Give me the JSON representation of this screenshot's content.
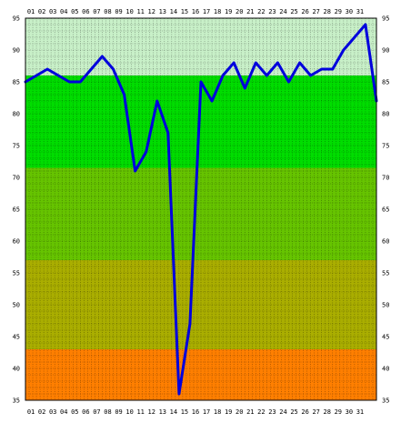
{
  "chart_data": {
    "type": "line",
    "title": "",
    "xlabel": "",
    "ylabel": "",
    "x_ticks": [
      "01",
      "02",
      "03",
      "04",
      "05",
      "06",
      "07",
      "08",
      "09",
      "10",
      "11",
      "12",
      "13",
      "14",
      "15",
      "16",
      "17",
      "18",
      "19",
      "20",
      "21",
      "22",
      "23",
      "24",
      "25",
      "26",
      "27",
      "28",
      "29",
      "30",
      "31"
    ],
    "y_ticks": [
      95,
      90,
      85,
      80,
      75,
      70,
      65,
      60,
      55,
      50,
      45,
      40,
      35
    ],
    "ylim": [
      35,
      95
    ],
    "x_range": [
      0.5,
      32.5
    ],
    "grid": true,
    "bands": [
      {
        "from": 86,
        "to": 95,
        "color": "#c8f0c8"
      },
      {
        "from": 71.5,
        "to": 86,
        "color": "#00dd00"
      },
      {
        "from": 57,
        "to": 71.5,
        "color": "#66c400"
      },
      {
        "from": 43,
        "to": 57,
        "color": "#aaae00"
      },
      {
        "from": 35,
        "to": 43,
        "color": "#ff7f00"
      }
    ],
    "series": [
      {
        "color": "#0000dd",
        "x": [
          0.5,
          1.5,
          2.5,
          3.5,
          4.5,
          5.5,
          6.5,
          7.5,
          8.5,
          9.5,
          10.5,
          11.5,
          12.5,
          13.5,
          14.5,
          15.5,
          16.5,
          17.5,
          18.5,
          19.5,
          20.5,
          21.5,
          22.5,
          23.5,
          24.5,
          25.5,
          26.5,
          27.5,
          28.5,
          29.5,
          30.5,
          31.5,
          32.5
        ],
        "values": [
          85,
          86,
          87,
          86,
          85,
          85,
          87,
          89,
          87,
          83,
          71,
          74,
          82,
          77,
          36,
          47,
          85,
          82,
          86,
          88,
          84,
          88,
          86,
          88,
          85,
          88,
          86,
          87,
          87,
          90,
          92,
          94,
          82
        ]
      }
    ]
  }
}
